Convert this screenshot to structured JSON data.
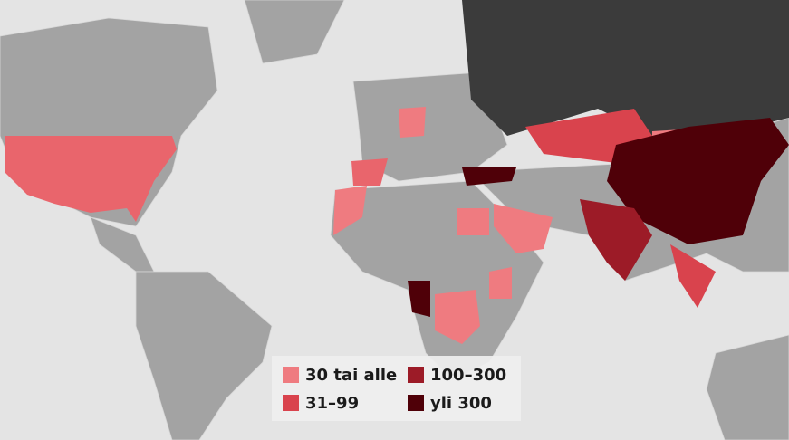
{
  "legend": {
    "items": [
      {
        "label": "30 tai alle",
        "color": "#ef7b80"
      },
      {
        "label": "31–99",
        "color": "#d9434d"
      },
      {
        "label": "100–300",
        "color": "#9c1b27"
      },
      {
        "label": "yli 300",
        "color": "#4f0008"
      }
    ]
  }
}
